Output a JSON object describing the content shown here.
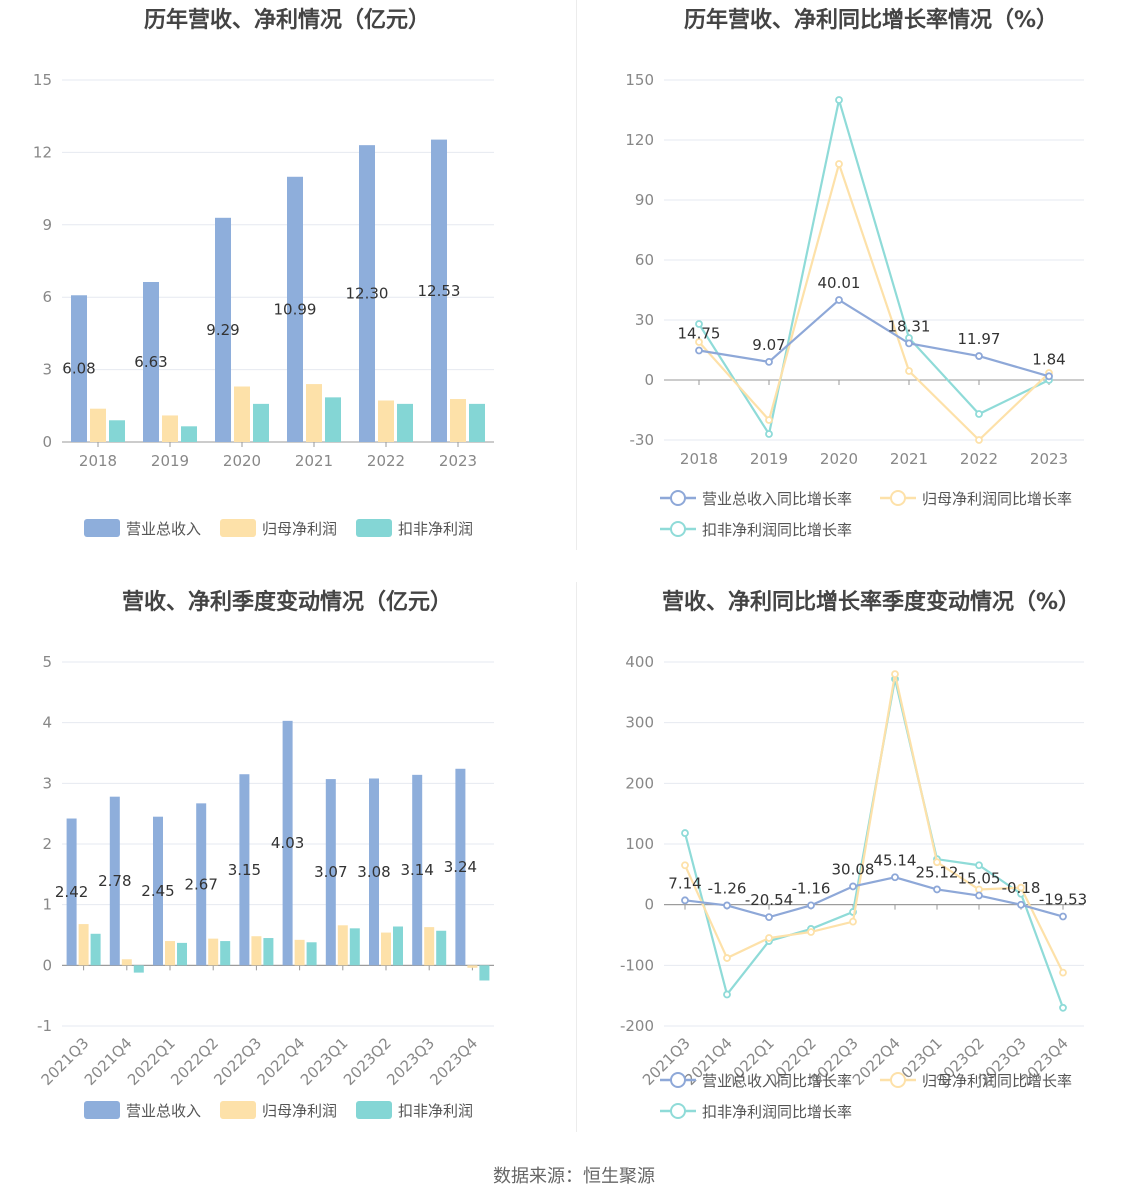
{
  "source": "数据来源：恒生聚源",
  "chart_data": [
    {
      "type": "bar",
      "title": "历年营收、净利情况（亿元）",
      "categories": [
        "2018",
        "2019",
        "2020",
        "2021",
        "2022",
        "2023"
      ],
      "series": [
        {
          "name": "营业总收入",
          "color": "#8eaedb",
          "values": [
            6.08,
            6.63,
            9.29,
            10.99,
            12.3,
            12.53
          ],
          "labels": [
            "6.08",
            "6.63",
            "9.29",
            "10.99",
            "12.30",
            "12.53"
          ]
        },
        {
          "name": "归母净利润",
          "color": "#fde1a9",
          "values": [
            1.38,
            1.1,
            2.3,
            2.4,
            1.72,
            1.78
          ]
        },
        {
          "name": "扣非净利润",
          "color": "#84d6d5",
          "values": [
            0.9,
            0.65,
            1.58,
            1.85,
            1.58,
            1.58
          ]
        }
      ],
      "ylim": [
        0,
        15
      ],
      "yticks": [
        "0",
        "3",
        "6",
        "9",
        "12",
        "15"
      ]
    },
    {
      "type": "line",
      "title": "历年营收、净利同比增长率情况（%）",
      "categories": [
        "2018",
        "2019",
        "2020",
        "2021",
        "2022",
        "2023"
      ],
      "series": [
        {
          "name": "营业总收入同比增长率",
          "color": "#8ea8d8",
          "values": [
            14.75,
            9.07,
            40.01,
            18.31,
            11.97,
            1.84
          ],
          "labels": [
            "14.75",
            "9.07",
            "40.01",
            "18.31",
            "11.97",
            "1.84"
          ]
        },
        {
          "name": "归母净利润同比增长率",
          "color": "#fde1a9",
          "values": [
            19,
            -20,
            108,
            4.5,
            -30,
            3.5
          ]
        },
        {
          "name": "扣非净利润同比增长率",
          "color": "#8fdbd8",
          "values": [
            28,
            -27,
            140,
            21,
            -17,
            0
          ]
        }
      ],
      "ylim": [
        -30,
        150
      ],
      "yticks": [
        "-30",
        "0",
        "30",
        "60",
        "90",
        "120",
        "150"
      ]
    },
    {
      "type": "bar",
      "title": "营收、净利季度变动情况（亿元）",
      "categories": [
        "2021Q3",
        "2021Q4",
        "2022Q1",
        "2022Q2",
        "2022Q3",
        "2022Q4",
        "2023Q1",
        "2023Q2",
        "2023Q3",
        "2023Q4"
      ],
      "series": [
        {
          "name": "营业总收入",
          "color": "#8eaedb",
          "values": [
            2.42,
            2.78,
            2.45,
            2.67,
            3.15,
            4.03,
            3.07,
            3.08,
            3.14,
            3.24
          ],
          "labels": [
            "2.42",
            "2.78",
            "2.45",
            "2.67",
            "3.15",
            "4.03",
            "3.07",
            "3.08",
            "3.14",
            "3.24"
          ]
        },
        {
          "name": "归母净利润",
          "color": "#fde1a9",
          "values": [
            0.68,
            0.1,
            0.4,
            0.44,
            0.48,
            0.42,
            0.66,
            0.54,
            0.63,
            -0.04
          ]
        },
        {
          "name": "扣非净利润",
          "color": "#84d6d5",
          "values": [
            0.52,
            -0.12,
            0.37,
            0.4,
            0.45,
            0.38,
            0.61,
            0.64,
            0.57,
            -0.25
          ]
        }
      ],
      "ylim": [
        -1,
        5
      ],
      "yticks": [
        "-1",
        "0",
        "1",
        "2",
        "3",
        "4",
        "5"
      ]
    },
    {
      "type": "line",
      "title": "营收、净利同比增长率季度变动情况（%）",
      "categories": [
        "2021Q3",
        "2021Q4",
        "2022Q1",
        "2022Q2",
        "2022Q3",
        "2022Q4",
        "2023Q1",
        "2023Q2",
        "2023Q3",
        "2023Q4"
      ],
      "series": [
        {
          "name": "营业总收入同比增长率",
          "color": "#8ea8d8",
          "values": [
            7.14,
            -1.26,
            -20.54,
            -1.16,
            30.08,
            45.14,
            25.12,
            15.05,
            -0.18,
            -19.53
          ],
          "labels": [
            "7.14",
            "-1.26",
            "-20.54",
            "-1.16",
            "30.08",
            "45.14",
            "25.12",
            "15.05",
            "-0.18",
            "-19.53"
          ]
        },
        {
          "name": "归母净利润同比增长率",
          "color": "#fde1a9",
          "values": [
            65,
            -88,
            -55,
            -45,
            -28,
            380,
            70,
            25,
            28,
            -112
          ]
        },
        {
          "name": "扣非净利润同比增长率",
          "color": "#8fdbd8",
          "values": [
            118,
            -148,
            -60,
            -40,
            -12,
            372,
            75,
            65,
            18,
            -170
          ]
        }
      ],
      "ylim": [
        -200,
        400
      ],
      "yticks": [
        "-200",
        "-100",
        "0",
        "100",
        "200",
        "300",
        "400"
      ]
    }
  ]
}
